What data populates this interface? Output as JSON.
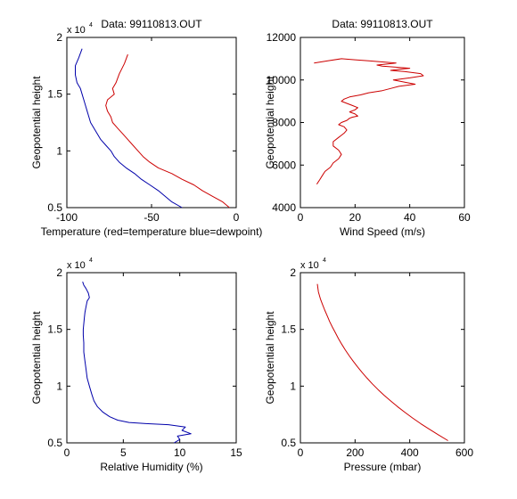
{
  "chart_data": [
    {
      "type": "line",
      "title": "Data: 99110813.OUT",
      "xlabel": "Temperature (red=temperature blue=dewpoint)",
      "ylabel": "Geopotential height",
      "y_exponent": "x 10",
      "y_exponent_power": "4",
      "xlim": [
        -100,
        0
      ],
      "ylim": [
        0.5,
        2
      ],
      "xticks": [
        -100,
        -50,
        0
      ],
      "xtick_labels": [
        "-100",
        "-50",
        "0"
      ],
      "yticks": [
        0.5,
        1,
        1.5,
        2
      ],
      "ytick_labels": [
        "0.5",
        "1",
        "1.5",
        "2"
      ],
      "grid": false,
      "series": [
        {
          "name": "temperature",
          "color": "#cc0000",
          "x": [
            -4,
            -8,
            -14,
            -20,
            -25,
            -32,
            -38,
            -46,
            -51,
            -55,
            -58,
            -61,
            -64,
            -67,
            -70,
            -73,
            -74,
            -76,
            -77,
            -76,
            -72,
            -73,
            -71,
            -69,
            -66,
            -64
          ],
          "y": [
            0.5,
            0.55,
            0.6,
            0.65,
            0.7,
            0.75,
            0.8,
            0.85,
            0.9,
            0.95,
            1.0,
            1.05,
            1.1,
            1.15,
            1.2,
            1.25,
            1.3,
            1.35,
            1.4,
            1.45,
            1.5,
            1.55,
            1.6,
            1.68,
            1.77,
            1.85
          ]
        },
        {
          "name": "dewpoint",
          "color": "#0000aa",
          "x": [
            -32,
            -38,
            -42,
            -46,
            -51,
            -56,
            -60,
            -65,
            -69,
            -72,
            -74,
            -77,
            -80,
            -82,
            -84,
            -86,
            -87,
            -88,
            -89,
            -90,
            -91,
            -92,
            -94,
            -95,
            -95,
            -93,
            -91
          ],
          "y": [
            0.5,
            0.55,
            0.6,
            0.65,
            0.7,
            0.75,
            0.8,
            0.85,
            0.9,
            0.95,
            1.0,
            1.05,
            1.1,
            1.15,
            1.2,
            1.25,
            1.3,
            1.35,
            1.4,
            1.45,
            1.5,
            1.55,
            1.6,
            1.67,
            1.75,
            1.82,
            1.9
          ]
        }
      ]
    },
    {
      "type": "line",
      "title": "Data: 99110813.OUT",
      "xlabel": "Wind Speed (m/s)",
      "ylabel": "Geopotential height",
      "xlim": [
        0,
        60
      ],
      "ylim": [
        4000,
        12000
      ],
      "xticks": [
        0,
        20,
        40,
        60
      ],
      "xtick_labels": [
        "0",
        "20",
        "40",
        "60"
      ],
      "yticks": [
        4000,
        6000,
        8000,
        10000,
        12000
      ],
      "ytick_labels": [
        "4000",
        "6000",
        "8000",
        "10000",
        "12000"
      ],
      "grid": false,
      "series": [
        {
          "name": "wind speed",
          "color": "#cc0000",
          "x": [
            6,
            7,
            8,
            9,
            11,
            12,
            14,
            15,
            14,
            12,
            12,
            14,
            16,
            17,
            16,
            14,
            15,
            17,
            18,
            19,
            21,
            20,
            18,
            20,
            21,
            19,
            17,
            15,
            16,
            18,
            22,
            25,
            30,
            33,
            36,
            42,
            38,
            34,
            40,
            45,
            44,
            38,
            33,
            36,
            40,
            35,
            30,
            28,
            32,
            35,
            30,
            25,
            20,
            15,
            10,
            5
          ],
          "y": [
            5100,
            5300,
            5500,
            5700,
            5900,
            6100,
            6300,
            6500,
            6700,
            6900,
            7100,
            7300,
            7500,
            7650,
            7800,
            7900,
            8000,
            8100,
            8200,
            8250,
            8300,
            8400,
            8500,
            8600,
            8700,
            8800,
            8900,
            9000,
            9100,
            9200,
            9300,
            9400,
            9500,
            9600,
            9700,
            9800,
            9900,
            10000,
            10100,
            10200,
            10300,
            10400,
            10450,
            10500,
            10550,
            10600,
            10650,
            10700,
            10750,
            10800,
            10850,
            10900,
            10950,
            11000,
            10900,
            10800
          ]
        }
      ]
    },
    {
      "type": "line",
      "title": "",
      "xlabel": "Relative Humidity (%)",
      "ylabel": "Geopotential height",
      "y_exponent": "x 10",
      "y_exponent_power": "4",
      "xlim": [
        0,
        15
      ],
      "ylim": [
        0.5,
        2
      ],
      "xticks": [
        0,
        5,
        10,
        15
      ],
      "xtick_labels": [
        "0",
        "5",
        "10",
        "15"
      ],
      "yticks": [
        0.5,
        1,
        1.5,
        2
      ],
      "ytick_labels": [
        "0.5",
        "1",
        "1.5",
        "2"
      ],
      "grid": false,
      "series": [
        {
          "name": "relative humidity",
          "color": "#0000aa",
          "x": [
            9.5,
            10.0,
            9.8,
            11.0,
            10.2,
            10.5,
            9.0,
            7.0,
            5.5,
            4.5,
            3.8,
            3.2,
            2.7,
            2.4,
            2.2,
            2.0,
            1.8,
            1.7,
            1.6,
            1.5,
            1.5,
            1.45,
            1.45,
            1.5,
            1.55,
            1.6,
            1.7,
            1.8,
            2.0,
            1.9,
            1.7,
            1.5,
            1.4
          ],
          "y": [
            0.5,
            0.53,
            0.56,
            0.58,
            0.61,
            0.64,
            0.66,
            0.67,
            0.68,
            0.7,
            0.73,
            0.77,
            0.82,
            0.87,
            0.93,
            1.0,
            1.07,
            1.15,
            1.22,
            1.3,
            1.38,
            1.45,
            1.5,
            1.55,
            1.6,
            1.65,
            1.7,
            1.75,
            1.78,
            1.82,
            1.86,
            1.89,
            1.92
          ]
        }
      ]
    },
    {
      "type": "line",
      "title": "",
      "xlabel": "Pressure (mbar)",
      "ylabel": "Geopotential height",
      "y_exponent": "x 10",
      "y_exponent_power": "4",
      "xlim": [
        0,
        600
      ],
      "ylim": [
        0.5,
        2
      ],
      "xticks": [
        0,
        200,
        400,
        600
      ],
      "xtick_labels": [
        "0",
        "200",
        "400",
        "600"
      ],
      "yticks": [
        0.5,
        1,
        1.5,
        2
      ],
      "ytick_labels": [
        "0.5",
        "1",
        "1.5",
        "2"
      ],
      "grid": false,
      "series": [
        {
          "name": "pressure",
          "color": "#cc0000",
          "x": [
            540,
            505,
            472,
            440,
            410,
            382,
            355,
            330,
            306,
            284,
            263,
            244,
            226,
            209,
            193,
            178,
            164,
            151,
            139,
            128,
            117,
            107,
            98,
            89,
            81,
            73,
            66,
            62
          ],
          "y": [
            0.52,
            0.57,
            0.62,
            0.67,
            0.72,
            0.77,
            0.82,
            0.87,
            0.92,
            0.97,
            1.02,
            1.07,
            1.12,
            1.17,
            1.22,
            1.27,
            1.32,
            1.37,
            1.42,
            1.47,
            1.52,
            1.57,
            1.62,
            1.67,
            1.72,
            1.77,
            1.83,
            1.9
          ]
        }
      ]
    }
  ]
}
